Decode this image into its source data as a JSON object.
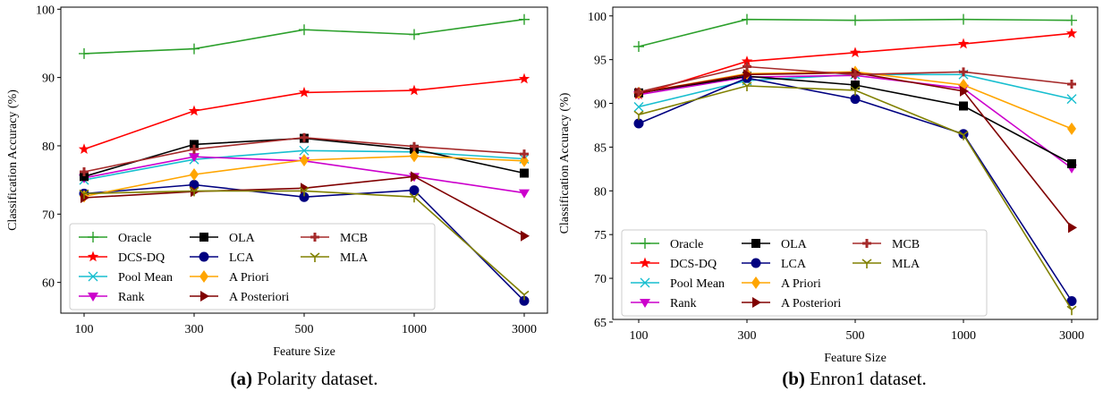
{
  "chart_data": [
    {
      "type": "line",
      "caption_label": "(a)",
      "caption_text": "Polarity dataset.",
      "xlabel": "Feature Size",
      "ylabel": "Classification Accuracy (%)",
      "categories": [
        "100",
        "300",
        "500",
        "1000",
        "3000"
      ],
      "ylim": [
        55.5,
        100.3
      ],
      "yticks": [
        60,
        70,
        80,
        90,
        100
      ],
      "grid": false,
      "legend_position": "bottom-left",
      "series": [
        {
          "name": "Oracle",
          "color": "#2ca02c",
          "marker": "plus",
          "values": [
            93.5,
            94.2,
            97.0,
            96.3,
            98.5
          ]
        },
        {
          "name": "DCS-DQ",
          "color": "#ff0000",
          "marker": "star",
          "values": [
            79.5,
            85.1,
            87.8,
            88.1,
            89.8
          ]
        },
        {
          "name": "Pool Mean",
          "color": "#17becf",
          "marker": "x",
          "values": [
            75.0,
            78.0,
            79.3,
            79.1,
            78.1
          ]
        },
        {
          "name": "Rank",
          "color": "#cc00cc",
          "marker": "triangle-down",
          "values": [
            75.3,
            78.4,
            77.8,
            75.5,
            73.1
          ]
        },
        {
          "name": "OLA",
          "color": "#000000",
          "marker": "square",
          "values": [
            75.5,
            80.2,
            81.1,
            79.5,
            76.0
          ]
        },
        {
          "name": "LCA",
          "color": "#000080",
          "marker": "circle",
          "values": [
            73.0,
            74.3,
            72.5,
            73.5,
            57.3
          ]
        },
        {
          "name": "A Priori",
          "color": "#ffa500",
          "marker": "diamond",
          "values": [
            72.6,
            75.8,
            77.9,
            78.5,
            77.8
          ]
        },
        {
          "name": "A Posteriori",
          "color": "#800000",
          "marker": "triangle-right",
          "values": [
            72.4,
            73.3,
            73.8,
            75.5,
            66.8
          ]
        },
        {
          "name": "MCB",
          "color": "#a52a2a",
          "marker": "plus-bold",
          "values": [
            76.2,
            79.5,
            81.2,
            79.9,
            78.8
          ]
        },
        {
          "name": "MLA",
          "color": "#808000",
          "marker": "tri-down",
          "values": [
            73.0,
            73.4,
            73.4,
            72.5,
            58.2
          ]
        }
      ]
    },
    {
      "type": "line",
      "caption_label": "(b)",
      "caption_text": "Enron1 dataset.",
      "xlabel": "Feature Size",
      "ylabel": "Classification Accuracy (%)",
      "categories": [
        "100",
        "300",
        "500",
        "1000",
        "3000"
      ],
      "ylim": [
        65.3,
        101.0
      ],
      "yticks": [
        65,
        70,
        75,
        80,
        85,
        90,
        95,
        100
      ],
      "grid": false,
      "legend_position": "bottom-left",
      "series": [
        {
          "name": "Oracle",
          "color": "#2ca02c",
          "marker": "plus",
          "values": [
            96.5,
            99.6,
            99.5,
            99.6,
            99.5
          ]
        },
        {
          "name": "DCS-DQ",
          "color": "#ff0000",
          "marker": "star",
          "values": [
            91.0,
            94.8,
            95.8,
            96.8,
            98.0
          ]
        },
        {
          "name": "Pool Mean",
          "color": "#17becf",
          "marker": "x",
          "values": [
            89.6,
            92.6,
            93.3,
            93.3,
            90.5
          ]
        },
        {
          "name": "Rank",
          "color": "#cc00cc",
          "marker": "triangle-down",
          "values": [
            91.0,
            93.0,
            93.2,
            91.7,
            82.6
          ]
        },
        {
          "name": "OLA",
          "color": "#000000",
          "marker": "square",
          "values": [
            91.2,
            93.1,
            92.1,
            89.7,
            83.1
          ]
        },
        {
          "name": "LCA",
          "color": "#000080",
          "marker": "circle",
          "values": [
            87.7,
            92.9,
            90.5,
            86.5,
            67.4
          ]
        },
        {
          "name": "A Priori",
          "color": "#ffa500",
          "marker": "diamond",
          "values": [
            91.2,
            93.4,
            93.6,
            92.1,
            87.1
          ]
        },
        {
          "name": "A Posteriori",
          "color": "#800000",
          "marker": "triangle-right",
          "values": [
            91.2,
            93.3,
            93.5,
            91.4,
            75.8
          ]
        },
        {
          "name": "MCB",
          "color": "#a52a2a",
          "marker": "plus-bold",
          "values": [
            91.3,
            94.2,
            93.3,
            93.6,
            92.2
          ]
        },
        {
          "name": "MLA",
          "color": "#808000",
          "marker": "tri-down",
          "values": [
            88.7,
            92.0,
            91.5,
            86.4,
            66.4
          ]
        }
      ]
    }
  ]
}
